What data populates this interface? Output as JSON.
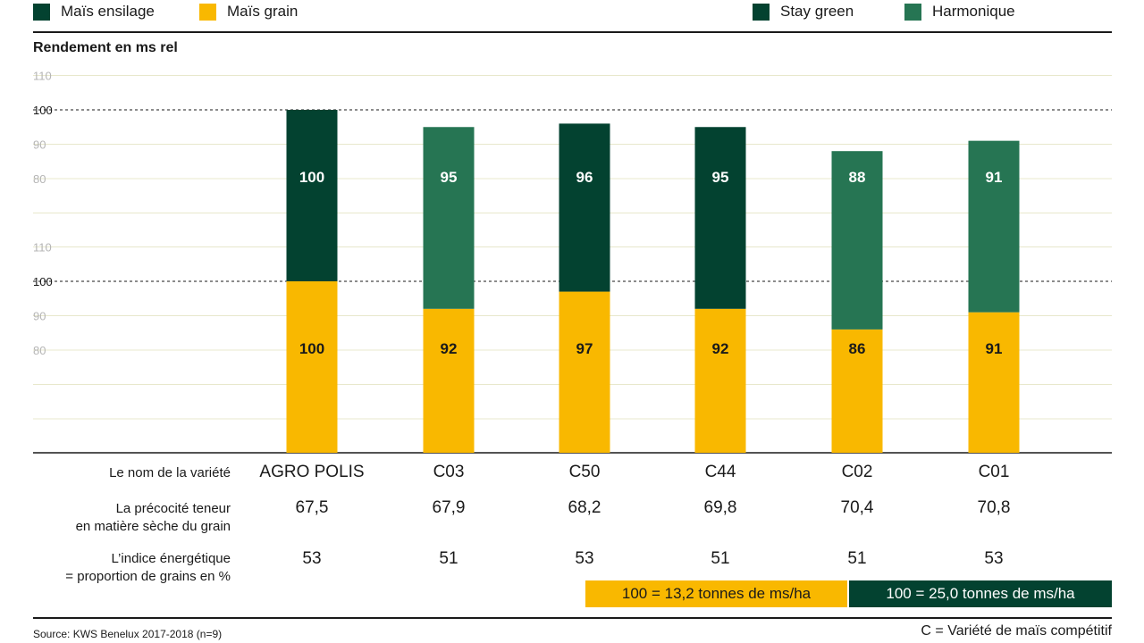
{
  "legend": {
    "items": [
      {
        "label": "Maïs ensilage",
        "color": "#034230"
      },
      {
        "label": "Maïs grain",
        "color": "#f9b800"
      },
      {
        "label": "Stay green",
        "color": "#034230"
      },
      {
        "label": "Harmonique",
        "color": "#267553"
      }
    ]
  },
  "chart_data": {
    "type": "bar",
    "title": "",
    "ylabel": "Rendement en ms rel",
    "yticks": [
      "80",
      "90",
      "100",
      "110"
    ],
    "ylim": [
      70,
      110
    ],
    "reference_value": 100,
    "grid": true,
    "categories": [
      "AGRO POLIS",
      "C03",
      "C50",
      "C44",
      "C02",
      "C01"
    ],
    "series": [
      {
        "name": "Maïs ensilage",
        "values": [
          100,
          95,
          96,
          95,
          88,
          91
        ],
        "types": [
          "Stay green",
          "Harmonique",
          "Stay green",
          "Stay green",
          "Harmonique",
          "Harmonique"
        ]
      },
      {
        "name": "Maïs grain",
        "values": [
          100,
          92,
          97,
          92,
          86,
          91
        ]
      }
    ],
    "colors": {
      "stay_green": "#034230",
      "harmonique": "#267553",
      "grain": "#f9b800",
      "grid": "#e8e8cc"
    }
  },
  "table": {
    "rows": [
      {
        "label": "Le nom de la variété",
        "values": [
          "AGRO POLIS",
          "C03",
          "C50",
          "C44",
          "C02",
          "C01"
        ]
      },
      {
        "label_lines": [
          "La précocité teneur",
          "en matière sèche du grain"
        ],
        "values": [
          "67,5",
          "67,9",
          "68,2",
          "69,8",
          "70,4",
          "70,8"
        ]
      },
      {
        "label_lines": [
          "L’indice énergétique",
          "= proportion de grains en %"
        ],
        "values": [
          "53",
          "51",
          "53",
          "51",
          "51",
          "53"
        ]
      }
    ]
  },
  "reference": {
    "grain": "100 = 13,2 tonnes de ms/ha",
    "silage": "100 = 25,0 tonnes de ms/ha"
  },
  "footer": {
    "source": "Source: KWS Benelux 2017-2018 (n=9)",
    "note": "C = Variété de maïs compétitif"
  }
}
